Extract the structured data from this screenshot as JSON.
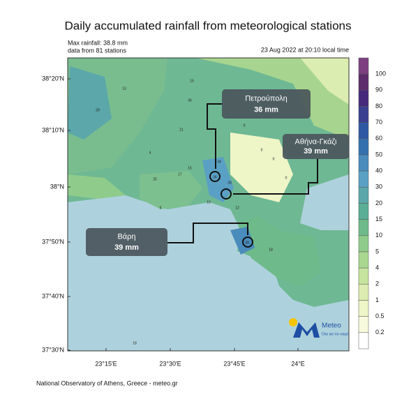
{
  "header": {
    "title": "Daily accumulated rainfall from meteorological stations",
    "max_rainfall": "Max rainfall: 38.8 mm",
    "stations": "data from 81 stations",
    "date": "23 Aug 2022 at 20:10 local time"
  },
  "lat_labels": [
    "38°20'N",
    "38°10'N",
    "38°N",
    "37°50'N",
    "37°40'N",
    "37°30'N"
  ],
  "lon_labels": [
    "23°15'E",
    "23°30'E",
    "23°45'E",
    "24°E"
  ],
  "colorbar": {
    "levels": [
      "100",
      "90",
      "80",
      "70",
      "60",
      "50",
      "40",
      "30",
      "20",
      "15",
      "10",
      "5",
      "4",
      "2",
      "1",
      "0.5",
      "0.2"
    ],
    "colors": [
      "#7d3f80",
      "#5c2c6c",
      "#46297a",
      "#3a3f90",
      "#2f58a3",
      "#3570ae",
      "#4a8cbc",
      "#5aa0c4",
      "#5ba7aa",
      "#5aae95",
      "#6eba8a",
      "#8fcc8b",
      "#a9d790",
      "#c6e49d",
      "#dcedb1",
      "#eef5c7",
      "#f8fadd",
      "#ffffff"
    ]
  },
  "callouts": [
    {
      "name": "Πετρούπολη",
      "value": "36 mm"
    },
    {
      "name": "Αθήνα-Γκάζι",
      "value": "39 mm"
    },
    {
      "name": "Βάρη",
      "value": "39 mm"
    }
  ],
  "stations": [
    "13",
    "15",
    "29",
    "36",
    "21",
    "4",
    "25",
    "17",
    "15",
    "34",
    "28",
    "36",
    "10",
    "12",
    "39",
    "18",
    "5",
    "18",
    "0",
    "0",
    "0",
    "0"
  ],
  "logo": {
    "name": "Meteo",
    "tagline": "Όλα για τον καιρό"
  },
  "footer": "National Observatory of Athens, Greece - meteo.gr"
}
